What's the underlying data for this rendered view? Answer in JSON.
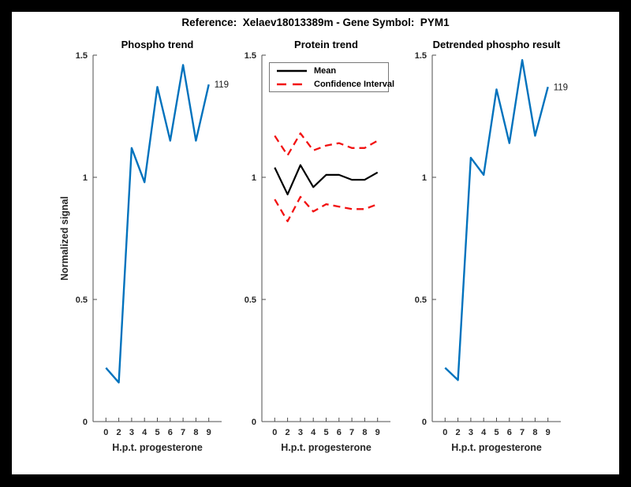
{
  "frame": {
    "border_color": "#000000",
    "figure_background": "#ffffff"
  },
  "header": {
    "title": "Reference:  Xelaev18013389m - Gene Symbol:  PYM1"
  },
  "colors": {
    "matlab_blue": "#0072BD",
    "ci_red": "#F21111",
    "mean_black": "#000000",
    "axis_gray": "#4d4d4d",
    "tick_label": "#262626"
  },
  "legend": {
    "entries": [
      {
        "label": "Mean",
        "color": "#000000",
        "style": "solid"
      },
      {
        "label": "Confidence Interval",
        "color": "#F21111",
        "style": "dashed"
      }
    ],
    "position": "top-left of Protein trend subplot"
  },
  "chart_data": [
    {
      "type": "line",
      "title": "Phospho trend",
      "xlabel": "H.p.t. progesterone",
      "ylabel": "Normalized signal",
      "x_tick_labels": [
        "0",
        "2",
        "3",
        "4",
        "5",
        "6",
        "7",
        "8",
        "9"
      ],
      "y_ticks": [
        0,
        0.5,
        1,
        1.5
      ],
      "y_tick_labels": [
        "0",
        "0.5",
        "1",
        "1.5"
      ],
      "ylim": [
        0,
        1.5
      ],
      "grid": false,
      "end_label": "119",
      "series": [
        {
          "name": "phospho-signal",
          "color": "#0072BD",
          "style": "solid",
          "width": 2.4,
          "values": [
            0.22,
            0.16,
            1.12,
            0.98,
            1.37,
            1.15,
            1.46,
            1.15,
            1.38
          ]
        }
      ]
    },
    {
      "type": "line",
      "title": "Protein trend",
      "xlabel": "H.p.t. progesterone",
      "ylabel": "",
      "x_tick_labels": [
        "0",
        "2",
        "3",
        "4",
        "5",
        "6",
        "7",
        "8",
        "9"
      ],
      "y_ticks": [
        0,
        0.5,
        1,
        1.5
      ],
      "y_tick_labels": [
        "0",
        "0.5",
        "1",
        "1.5"
      ],
      "ylim": [
        0,
        1.5
      ],
      "grid": false,
      "end_label": "",
      "series": [
        {
          "name": "mean",
          "color": "#000000",
          "style": "solid",
          "width": 2.2,
          "values": [
            1.04,
            0.93,
            1.05,
            0.96,
            1.01,
            1.01,
            0.99,
            0.99,
            1.02
          ]
        },
        {
          "name": "confidence-upper",
          "color": "#F21111",
          "style": "dashed",
          "width": 2.3,
          "values": [
            1.17,
            1.09,
            1.18,
            1.11,
            1.13,
            1.14,
            1.12,
            1.12,
            1.15
          ]
        },
        {
          "name": "confidence-lower",
          "color": "#F21111",
          "style": "dashed",
          "width": 2.3,
          "values": [
            0.91,
            0.82,
            0.92,
            0.86,
            0.89,
            0.88,
            0.87,
            0.87,
            0.89
          ]
        }
      ]
    },
    {
      "type": "line",
      "title": "Detrended phospho result",
      "xlabel": "H.p.t. progesterone",
      "ylabel": "",
      "x_tick_labels": [
        "0",
        "2",
        "3",
        "4",
        "5",
        "6",
        "7",
        "8",
        "9"
      ],
      "y_ticks": [
        0,
        0.5,
        1,
        1.5
      ],
      "y_tick_labels": [
        "0",
        "0.5",
        "1",
        "1.5"
      ],
      "ylim": [
        0,
        1.5
      ],
      "grid": false,
      "end_label": "119",
      "series": [
        {
          "name": "detrended-phospho-signal",
          "color": "#0072BD",
          "style": "solid",
          "width": 2.4,
          "values": [
            0.22,
            0.17,
            1.08,
            1.01,
            1.36,
            1.14,
            1.48,
            1.17,
            1.37
          ]
        }
      ]
    }
  ]
}
